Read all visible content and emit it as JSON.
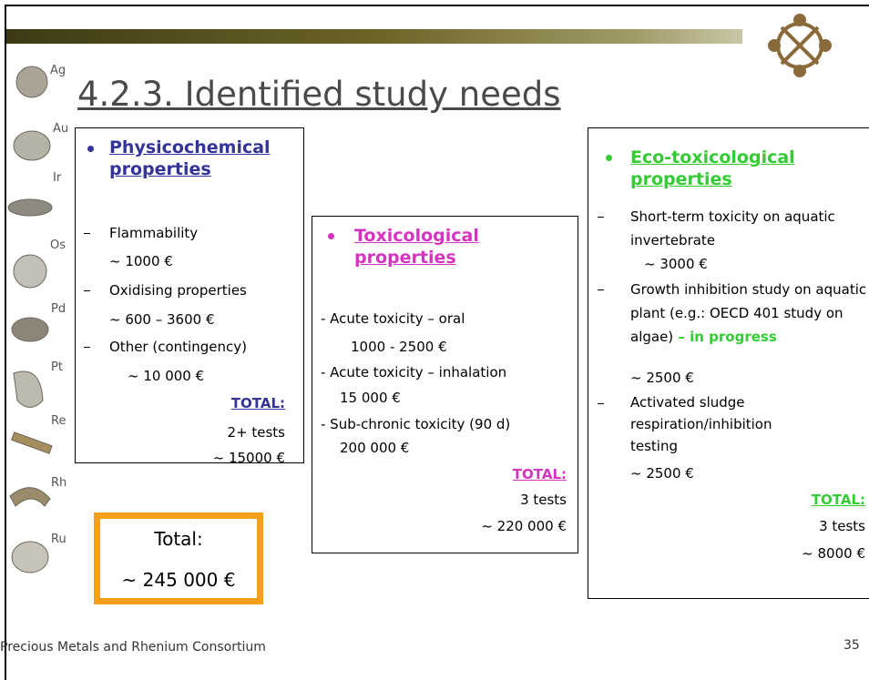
{
  "header": {
    "title": "4.2.3. Identified study needs"
  },
  "elements": [
    "Ag",
    "Au",
    "Ir",
    "Os",
    "Pd",
    "Pt",
    "Re",
    "Rh",
    "Ru"
  ],
  "panels": [
    {
      "heading": "Physicochemical properties",
      "items": [
        {
          "label": "Flammability",
          "cost": "~ 1000 €"
        },
        {
          "label": "Oxidising properties",
          "cost": "~ 600 – 3600 €"
        },
        {
          "label": "Other (contingency)",
          "cost": "~ 10 000 €"
        }
      ],
      "total_label": "TOTAL:",
      "total_tests": "2+ tests",
      "total_cost": "~ 15000 €"
    },
    {
      "heading": "Toxicological properties",
      "items": [
        {
          "label": "- Acute toxicity – oral",
          "cost": "1000 - 2500 €"
        },
        {
          "label": "- Acute toxicity – inhalation",
          "cost": "15 000 €"
        },
        {
          "label": "- Sub-chronic toxicity (90 d)",
          "cost": "200 000 €"
        }
      ],
      "total_label": "TOTAL:",
      "total_tests": "3 tests",
      "total_cost": "~ 220 000 €"
    },
    {
      "heading": "Eco-toxicological properties",
      "items": [
        {
          "label": "Short-term toxicity on aquatic invertebrate",
          "cost": "~ 3000 €"
        },
        {
          "label": "Growth inhibition study on aquatic plant (e.g.: OECD 401 study on algae)",
          "status": " – in progress",
          "cost": "~ 2500 €"
        },
        {
          "label": "Activated sludge respiration/inhibition testing",
          "cost": "~ 2500 €"
        }
      ],
      "total_label": "TOTAL:",
      "total_tests": "3 tests",
      "total_cost": "~ 8000 €"
    }
  ],
  "grand_total": {
    "label": "Total:",
    "value": "~ 245 000 €"
  },
  "footer": {
    "text": "Precious Metals and Rhenium Consortium",
    "page": 35
  }
}
